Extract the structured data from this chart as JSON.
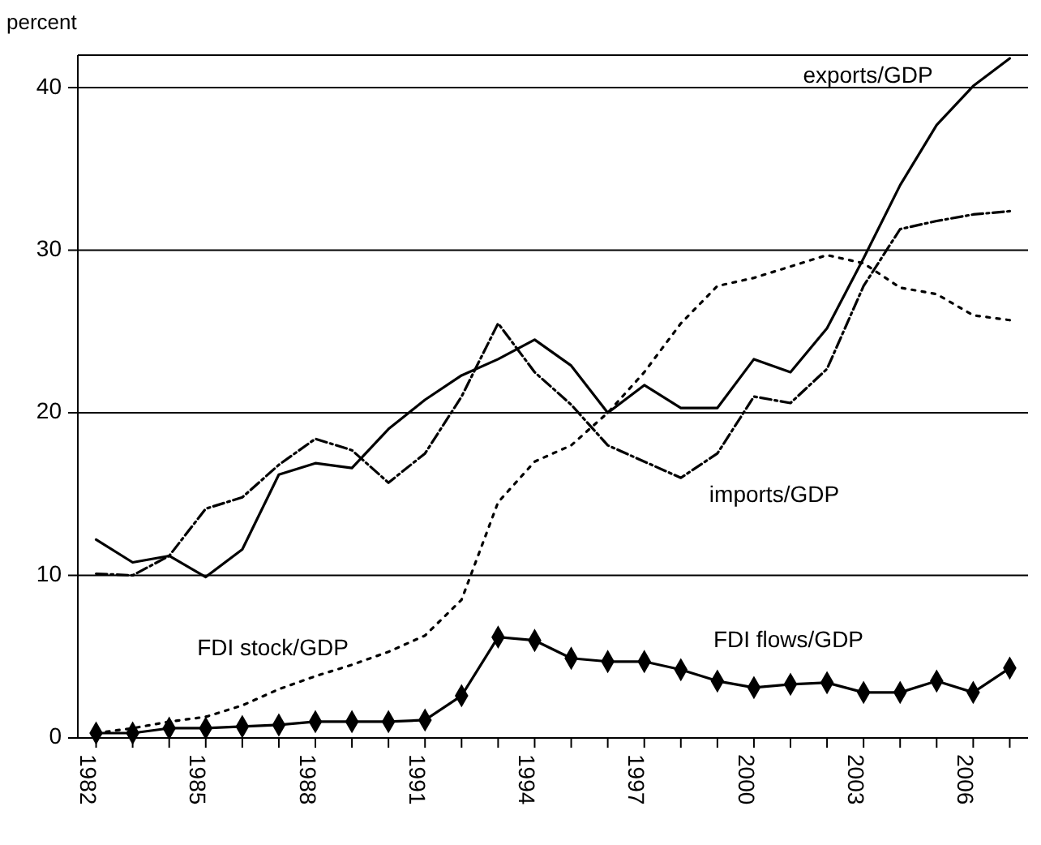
{
  "chart_data": {
    "type": "line",
    "ylabel": "percent",
    "x": [
      1982,
      1983,
      1984,
      1985,
      1986,
      1987,
      1988,
      1989,
      1990,
      1991,
      1992,
      1993,
      1994,
      1995,
      1996,
      1997,
      1998,
      1999,
      2000,
      2001,
      2002,
      2003,
      2004,
      2005,
      2006,
      2007
    ],
    "series": [
      {
        "name": "exports/GDP",
        "color": "#000000",
        "line_style": "solid",
        "marker": "none",
        "values": [
          12.2,
          10.8,
          11.2,
          9.9,
          11.6,
          16.2,
          16.9,
          16.6,
          19.0,
          20.8,
          22.3,
          23.3,
          24.5,
          22.9,
          20.0,
          21.7,
          20.3,
          20.3,
          23.3,
          22.5,
          25.2,
          29.5,
          34.0,
          37.7,
          40.1,
          41.8
        ]
      },
      {
        "name": "imports/GDP",
        "color": "#000000",
        "line_style": "dashed",
        "marker": "none",
        "values": [
          10.1,
          10.0,
          11.2,
          14.1,
          14.8,
          16.8,
          18.4,
          17.7,
          15.7,
          17.5,
          21.0,
          25.5,
          22.5,
          20.5,
          18.0,
          17.0,
          16.0,
          17.5,
          21.0,
          20.6,
          22.7,
          27.8,
          31.3,
          31.8,
          32.2,
          32.4
        ]
      },
      {
        "name": "FDI stock/GDP",
        "color": "#000000",
        "line_style": "dotted",
        "marker": "none",
        "values": [
          0.3,
          0.6,
          1.0,
          1.3,
          2.0,
          3.0,
          3.8,
          4.5,
          5.3,
          6.3,
          8.5,
          14.5,
          17.0,
          18.0,
          20.0,
          22.5,
          25.5,
          27.8,
          28.3,
          29.0,
          29.7,
          29.2,
          27.7,
          27.3,
          26.0,
          25.7
        ]
      },
      {
        "name": "FDI flows/GDP",
        "color": "#000000",
        "line_style": "solid",
        "marker": "diamond",
        "values": [
          0.3,
          0.3,
          0.6,
          0.6,
          0.7,
          0.8,
          1.0,
          1.0,
          1.0,
          1.1,
          2.6,
          6.2,
          6.0,
          4.9,
          4.7,
          4.7,
          4.2,
          3.5,
          3.1,
          3.3,
          3.4,
          2.8,
          2.8,
          3.5,
          2.8,
          4.3
        ]
      }
    ],
    "xlim": [
      1981.5,
      2007.5
    ],
    "xticks": [
      1982,
      {
        "value": 1983,
        "label": null
      },
      {
        "value": 1984,
        "label": null
      },
      1985,
      {
        "value": 1986,
        "label": null
      },
      {
        "value": 1987,
        "label": null
      },
      1988,
      {
        "value": 1989,
        "label": null
      },
      {
        "value": 1990,
        "label": null
      },
      1991,
      {
        "value": 1992,
        "label": null
      },
      {
        "value": 1993,
        "label": null
      },
      1994,
      {
        "value": 1995,
        "label": null
      },
      {
        "value": 1996,
        "label": null
      },
      1997,
      {
        "value": 1998,
        "label": null
      },
      {
        "value": 1999,
        "label": null
      },
      2000,
      {
        "value": 2001,
        "label": null
      },
      {
        "value": 2002,
        "label": null
      },
      2003,
      {
        "value": 2004,
        "label": null
      },
      {
        "value": 2005,
        "label": null
      },
      2006,
      {
        "value": 2007,
        "label": null
      }
    ],
    "ylim": [
      0,
      42
    ],
    "yticks": [
      0,
      10,
      20,
      30,
      40
    ],
    "grid": "y"
  }
}
